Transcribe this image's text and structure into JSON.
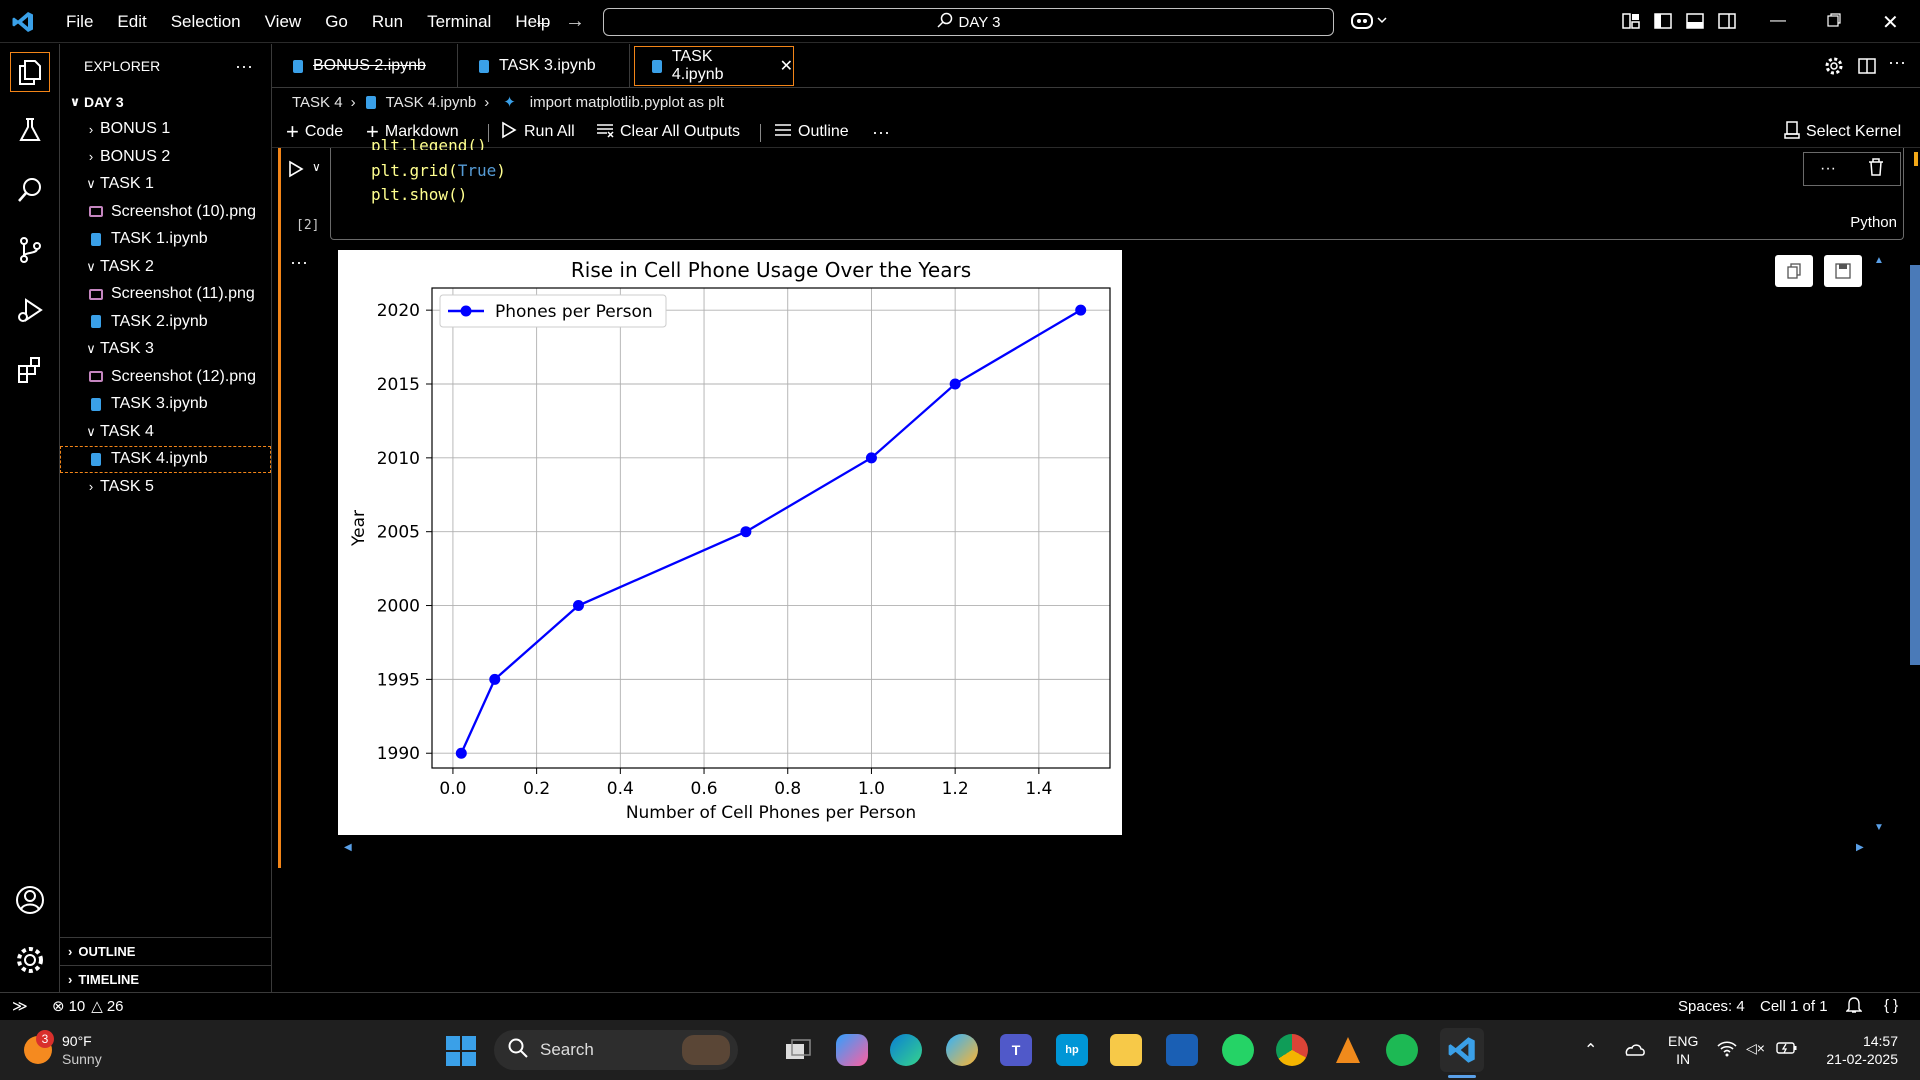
{
  "menu": [
    "File",
    "Edit",
    "Selection",
    "View",
    "Go",
    "Run",
    "Terminal",
    "Help"
  ],
  "command_center": "DAY 3",
  "explorer": {
    "title": "EXPLORER",
    "root": "DAY 3",
    "items": [
      {
        "label": "BONUS 1",
        "type": "folder",
        "open": false
      },
      {
        "label": "BONUS 2",
        "type": "folder",
        "open": false
      },
      {
        "label": "TASK 1",
        "type": "folder",
        "open": true
      },
      {
        "label": "Screenshot (10).png",
        "type": "image"
      },
      {
        "label": "TASK 1.ipynb",
        "type": "notebook"
      },
      {
        "label": "TASK 2",
        "type": "folder",
        "open": true
      },
      {
        "label": "Screenshot (11).png",
        "type": "image"
      },
      {
        "label": "TASK 2.ipynb",
        "type": "notebook"
      },
      {
        "label": "TASK 3",
        "type": "folder",
        "open": true
      },
      {
        "label": "Screenshot (12).png",
        "type": "image"
      },
      {
        "label": "TASK 3.ipynb",
        "type": "notebook"
      },
      {
        "label": "TASK 4",
        "type": "folder",
        "open": true
      },
      {
        "label": "TASK 4.ipynb",
        "type": "notebook",
        "selected": true
      },
      {
        "label": "TASK 5",
        "type": "folder",
        "open": false
      }
    ],
    "outline": "OUTLINE",
    "timeline": "TIMELINE"
  },
  "tabs": [
    {
      "label": "BONUS 2.ipynb"
    },
    {
      "label": "TASK 3.ipynb"
    },
    {
      "label": "TASK 4.ipynb",
      "active": true
    }
  ],
  "breadcrumb": [
    "TASK 4",
    "TASK 4.ipynb",
    "import matplotlib.pyplot as plt"
  ],
  "toolbar": {
    "code": "Code",
    "markdown": "Markdown",
    "run_all": "Run All",
    "clear": "Clear All Outputs",
    "outline": "Outline",
    "kernel": "Select Kernel"
  },
  "cell": {
    "exec_count": "[2]",
    "lang": "Python",
    "lines": [
      {
        "p1": "plt.legend()",
        "p2": "",
        "p3": ""
      },
      {
        "p1": "plt.grid(",
        "p2": "True",
        "p3": ")"
      },
      {
        "p1": "plt.show()",
        "p2": "",
        "p3": ""
      }
    ]
  },
  "chart_data": {
    "type": "line",
    "title": "Rise in Cell Phone Usage Over the Years",
    "xlabel": "Number of Cell Phones per Person",
    "ylabel": "Year",
    "xlim": [
      -0.05,
      1.57
    ],
    "ylim": [
      1989,
      2021.5
    ],
    "xticks": [
      0.0,
      0.2,
      0.4,
      0.6,
      0.8,
      1.0,
      1.2,
      1.4
    ],
    "yticks": [
      1990,
      1995,
      2000,
      2005,
      2010,
      2015,
      2020
    ],
    "grid": true,
    "legend": "top-left",
    "series": [
      {
        "name": "Phones per Person",
        "color": "#0000ff",
        "x": [
          0.02,
          0.1,
          0.3,
          0.7,
          1.0,
          1.2,
          1.5
        ],
        "y": [
          1990,
          1995,
          2000,
          2005,
          2010,
          2015,
          2020
        ]
      }
    ]
  },
  "status": {
    "errors": "10",
    "warnings": "26",
    "spaces": "Spaces: 4",
    "cell": "Cell 1 of 1"
  },
  "taskbar": {
    "temp": "90°F",
    "weather": "Sunny",
    "badge": "3",
    "search": "Search",
    "lang1": "ENG",
    "lang2": "IN",
    "time": "14:57",
    "date": "21-02-2025"
  }
}
